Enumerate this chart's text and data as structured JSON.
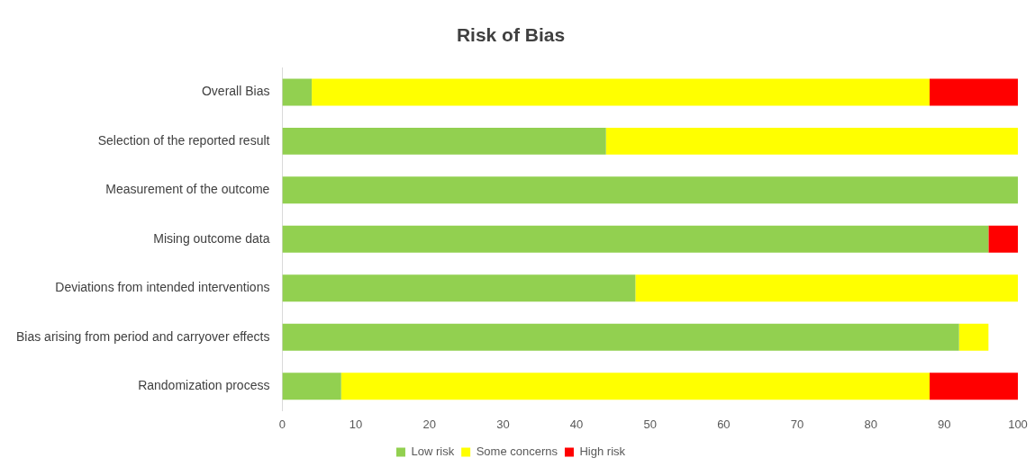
{
  "chart_data": {
    "type": "bar",
    "title": "Risk of Bias",
    "orientation": "horizontal",
    "stacked": true,
    "legend": "bottom",
    "grid": false,
    "categories": [
      "Overall Bias",
      "Selection of the reported result",
      "Measurement of the outcome",
      "Mising outcome data",
      "Deviations from intended interventions",
      "Bias arising from period and carryover effects",
      "Randomization process"
    ],
    "series": [
      {
        "name": "Low risk",
        "color": "#92d050",
        "values": [
          4,
          44,
          100,
          96,
          48,
          92,
          8
        ]
      },
      {
        "name": "Some concerns",
        "color": "#ffff00",
        "values": [
          84,
          56,
          0,
          0,
          52,
          4,
          80
        ]
      },
      {
        "name": "High risk",
        "color": "#ff0000",
        "values": [
          12,
          0,
          0,
          4,
          0,
          0,
          12
        ]
      }
    ],
    "xlim": [
      0,
      100
    ],
    "xticks": [
      0,
      10,
      20,
      30,
      40,
      50,
      60,
      70,
      80,
      90,
      100
    ]
  }
}
